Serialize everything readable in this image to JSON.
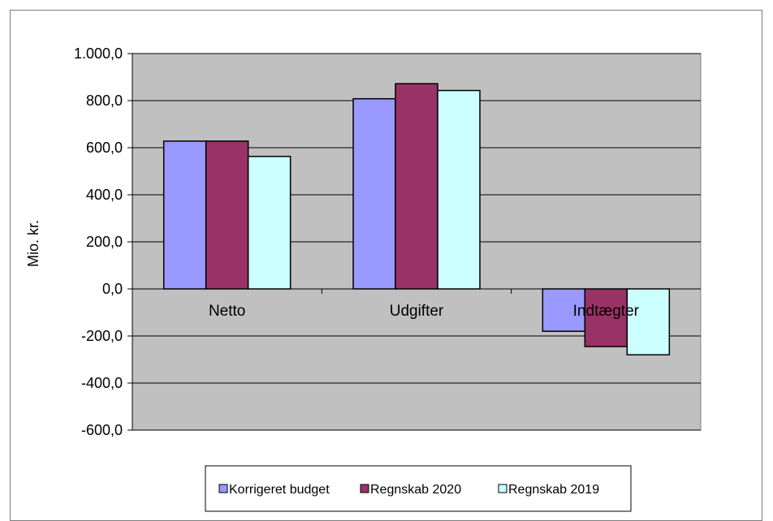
{
  "chart_data": {
    "type": "bar",
    "categories": [
      "Netto",
      "Udgifter",
      "Indtægter"
    ],
    "series": [
      {
        "name": "Korrigeret budget",
        "values": [
          628,
          808,
          -180
        ],
        "color": "#9999ff"
      },
      {
        "name": "Regnskab 2020",
        "values": [
          628,
          872,
          -245
        ],
        "color": "#993366"
      },
      {
        "name": "Regnskab 2019",
        "values": [
          563,
          843,
          -280
        ],
        "color": "#ccffff"
      }
    ],
    "ylabel": "Mio. kr.",
    "ylim": [
      -600,
      1000
    ],
    "yticks": [
      1000,
      800,
      600,
      400,
      200,
      0,
      -200,
      -400,
      -600
    ],
    "ytick_labels": [
      "1.000,0",
      "800,0",
      "600,0",
      "400,0",
      "200,0",
      "0,0",
      "-200,0",
      "-400,0",
      "-600,0"
    ],
    "grid": true,
    "legend_position": "bottom",
    "plot_background": "#c0c0c0"
  }
}
